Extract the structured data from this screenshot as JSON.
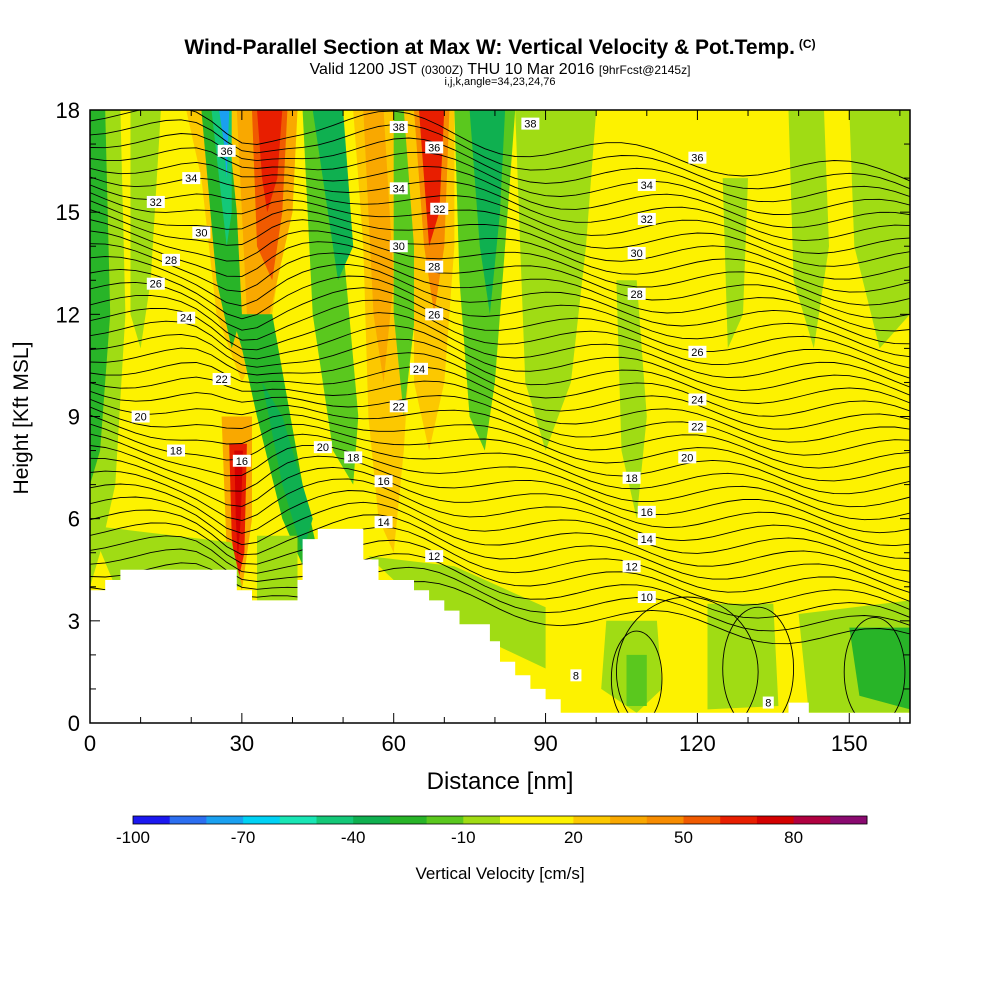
{
  "title": {
    "main": "Wind-Parallel Section at Max W: Vertical Velocity & Pot.Temp.",
    "copyright": "(C)",
    "valid_prefix": "Valid 1200 JST",
    "valid_utc": "(0300Z)",
    "valid_date": "THU 10 Mar 2016",
    "forecast": "[9hrFcst@2145z]",
    "indices": "i,j,k,angle=34,23,24,76"
  },
  "colors": {
    "neg100": "#1b18f0",
    "neg90": "#2c6ef0",
    "neg80": "#1aa0f0",
    "neg70": "#00d2f5",
    "neg60": "#19e6b5",
    "neg50": "#14c878",
    "neg40": "#0fb050",
    "neg30": "#28b428",
    "neg20": "#5ac81e",
    "neg10": "#a0dc14",
    "zero": "#fdf200",
    "pos10": "#fdf200",
    "pos20": "#fcc800",
    "pos30": "#f9a800",
    "pos40": "#f78c00",
    "pos50": "#f05a00",
    "pos60": "#e81e00",
    "pos70": "#d40000",
    "pos80": "#b00040",
    "pos90": "#8a0a70",
    "pos100": "#54009a"
  },
  "chart_data": {
    "type": "heatmap",
    "x": {
      "label": "Distance [nm]",
      "range": [
        0,
        162
      ],
      "ticks": [
        0,
        30,
        60,
        90,
        120,
        150
      ]
    },
    "y": {
      "label": "Height [Kft MSL]",
      "range": [
        0,
        18
      ],
      "ticks": [
        0,
        3,
        6,
        9,
        12,
        15,
        18
      ]
    },
    "shading": {
      "variable": "Vertical Velocity",
      "units": "cm/s",
      "colorbar_label": "Vertical Velocity [cm/s]",
      "colorbar_ticks": [
        -100,
        -70,
        -40,
        -10,
        20,
        50,
        80
      ],
      "levels": [
        -100,
        -90,
        -80,
        -70,
        -60,
        -50,
        -40,
        -30,
        -20,
        -10,
        0,
        10,
        20,
        30,
        40,
        50,
        60,
        70,
        80,
        90,
        100
      ],
      "features": [
        {
          "kind": "updraft",
          "x": 35,
          "y": 16.5,
          "peak": 70
        },
        {
          "kind": "updraft",
          "x": 29,
          "y": 7.0,
          "peak": 70
        },
        {
          "kind": "updraft",
          "x": 67,
          "y": 17.0,
          "peak": 65
        },
        {
          "kind": "downdraft",
          "x": 27,
          "y": 17.0,
          "peak": -70
        },
        {
          "kind": "downdraft",
          "x": 80,
          "y": 16.0,
          "peak": -40
        },
        {
          "kind": "downdraft",
          "x": 43,
          "y": 8.0,
          "peak": -35
        }
      ]
    },
    "contours": {
      "variable": "Pot.Temp.",
      "units": "C",
      "levels": [
        8,
        10,
        12,
        14,
        16,
        18,
        20,
        22,
        24,
        26,
        28,
        30,
        32,
        34,
        36,
        38
      ],
      "labels": [
        {
          "value": "38",
          "x": 61,
          "y": 17.5
        },
        {
          "value": "38",
          "x": 87,
          "y": 17.6
        },
        {
          "value": "36",
          "x": 27,
          "y": 16.8
        },
        {
          "value": "36",
          "x": 68,
          "y": 16.9
        },
        {
          "value": "36",
          "x": 120,
          "y": 16.6
        },
        {
          "value": "34",
          "x": 20,
          "y": 16.0
        },
        {
          "value": "34",
          "x": 61,
          "y": 15.7
        },
        {
          "value": "34",
          "x": 110,
          "y": 15.8
        },
        {
          "value": "32",
          "x": 13,
          "y": 15.3
        },
        {
          "value": "32",
          "x": 69,
          "y": 15.1
        },
        {
          "value": "32",
          "x": 110,
          "y": 14.8
        },
        {
          "value": "30",
          "x": 22,
          "y": 14.4
        },
        {
          "value": "30",
          "x": 61,
          "y": 14.0
        },
        {
          "value": "30",
          "x": 108,
          "y": 13.8
        },
        {
          "value": "28",
          "x": 16,
          "y": 13.6
        },
        {
          "value": "28",
          "x": 68,
          "y": 13.4
        },
        {
          "value": "28",
          "x": 108,
          "y": 12.6
        },
        {
          "value": "26",
          "x": 13,
          "y": 12.9
        },
        {
          "value": "26",
          "x": 68,
          "y": 12.0
        },
        {
          "value": "26",
          "x": 120,
          "y": 10.9
        },
        {
          "value": "24",
          "x": 19,
          "y": 11.9
        },
        {
          "value": "24",
          "x": 65,
          "y": 10.4
        },
        {
          "value": "24",
          "x": 120,
          "y": 9.5
        },
        {
          "value": "22",
          "x": 26,
          "y": 10.1
        },
        {
          "value": "22",
          "x": 61,
          "y": 9.3
        },
        {
          "value": "22",
          "x": 120,
          "y": 8.7
        },
        {
          "value": "20",
          "x": 10,
          "y": 9.0
        },
        {
          "value": "20",
          "x": 46,
          "y": 8.1
        },
        {
          "value": "20",
          "x": 118,
          "y": 7.8
        },
        {
          "value": "18",
          "x": 17,
          "y": 8.0
        },
        {
          "value": "18",
          "x": 52,
          "y": 7.8
        },
        {
          "value": "18",
          "x": 107,
          "y": 7.2
        },
        {
          "value": "16",
          "x": 30,
          "y": 7.7
        },
        {
          "value": "16",
          "x": 58,
          "y": 7.1
        },
        {
          "value": "16",
          "x": 110,
          "y": 6.2
        },
        {
          "value": "14",
          "x": 58,
          "y": 5.9
        },
        {
          "value": "14",
          "x": 110,
          "y": 5.4
        },
        {
          "value": "12",
          "x": 68,
          "y": 4.9
        },
        {
          "value": "12",
          "x": 107,
          "y": 4.6
        },
        {
          "value": "10",
          "x": 110,
          "y": 3.7
        },
        {
          "value": "8",
          "x": 96,
          "y": 1.4
        },
        {
          "value": "8",
          "x": 134,
          "y": 0.6
        }
      ]
    },
    "terrain": [
      [
        0,
        3.9
      ],
      [
        3,
        3.9
      ],
      [
        3,
        4.2
      ],
      [
        6,
        4.2
      ],
      [
        6,
        4.5
      ],
      [
        29,
        4.5
      ],
      [
        29,
        3.9
      ],
      [
        32,
        3.9
      ],
      [
        32,
        3.6
      ],
      [
        41,
        3.6
      ],
      [
        41,
        4.2
      ],
      [
        42,
        4.2
      ],
      [
        42,
        5.4
      ],
      [
        45,
        5.4
      ],
      [
        45,
        5.7
      ],
      [
        54,
        5.7
      ],
      [
        54,
        4.8
      ],
      [
        57,
        4.8
      ],
      [
        57,
        4.2
      ],
      [
        64,
        4.2
      ],
      [
        64,
        3.9
      ],
      [
        67,
        3.9
      ],
      [
        67,
        3.6
      ],
      [
        70,
        3.6
      ],
      [
        70,
        3.3
      ],
      [
        73,
        3.3
      ],
      [
        73,
        2.9
      ],
      [
        79,
        2.9
      ],
      [
        79,
        2.4
      ],
      [
        81,
        2.4
      ],
      [
        81,
        1.8
      ],
      [
        84,
        1.8
      ],
      [
        84,
        1.4
      ],
      [
        87,
        1.4
      ],
      [
        87,
        1.0
      ],
      [
        90,
        1.0
      ],
      [
        90,
        0.7
      ],
      [
        93,
        0.7
      ],
      [
        93,
        0.3
      ],
      [
        138,
        0.3
      ],
      [
        138,
        0.6
      ],
      [
        142,
        0.6
      ],
      [
        142,
        0.3
      ],
      [
        162,
        0.3
      ]
    ]
  }
}
